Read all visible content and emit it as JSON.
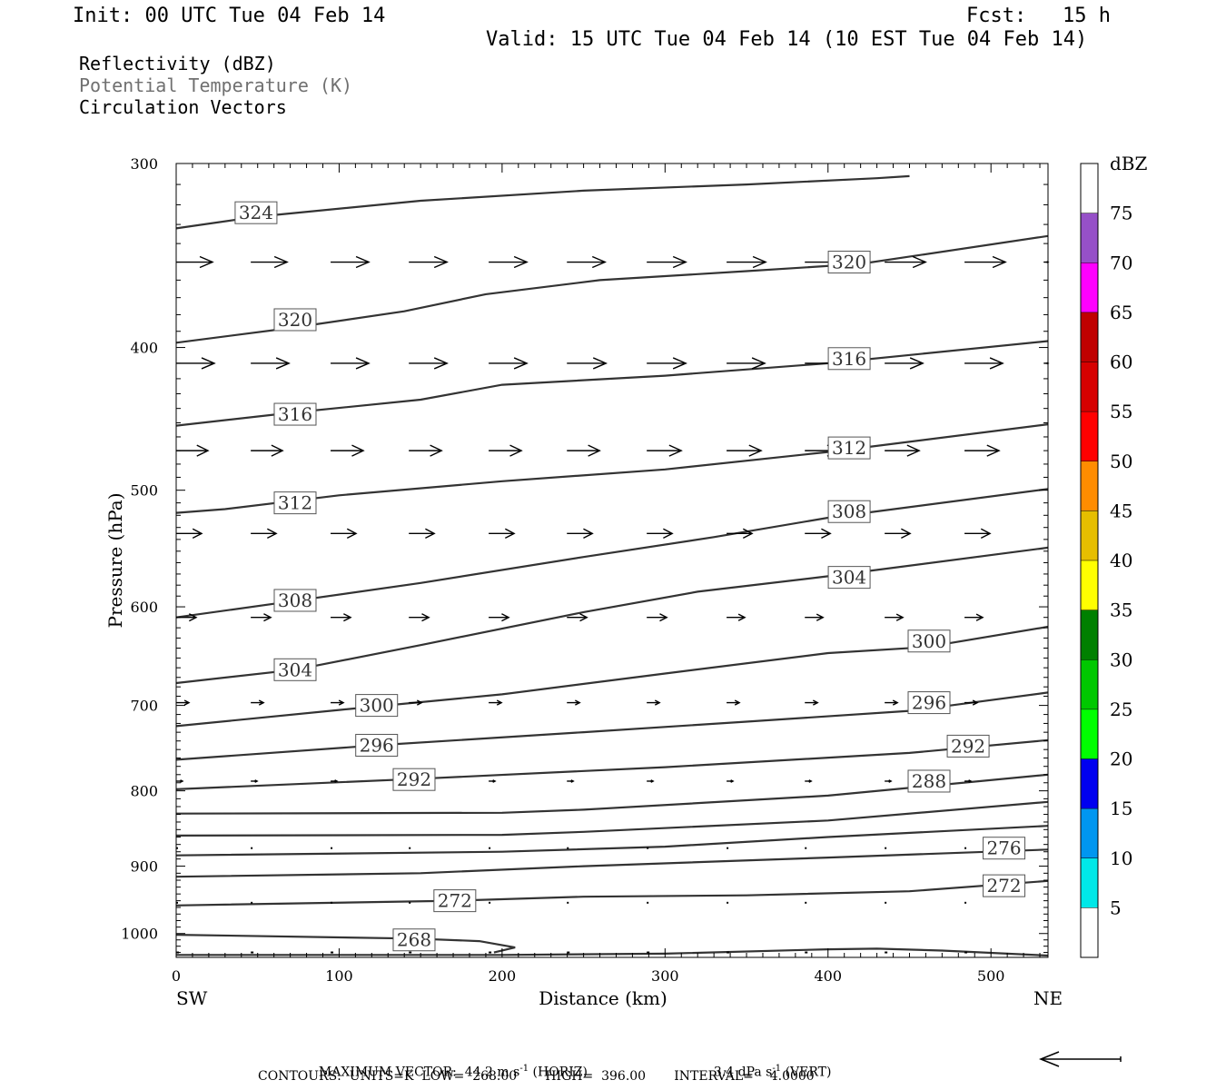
{
  "header": {
    "init": "Init: 00 UTC Tue 04 Feb 14",
    "fcst": "Fcst:   15 h",
    "valid": "Valid: 15 UTC Tue 04 Feb 14 (10 EST Tue 04 Feb 14)"
  },
  "legend": {
    "line1": "Reflectivity (dBZ)",
    "line2": "Potential Temperature (K)",
    "line3": "Circulation Vectors",
    "line2_color": "#707070"
  },
  "footer": {
    "max_vector_label": "MAXIMUM VECTOR:",
    "max_vector_h": "44.2 m s",
    "max_vector_h_exp": "-1",
    "max_vector_h_unit": "(HORIZ)",
    "max_vector_v": "3.4 dPa s",
    "max_vector_v_exp": "-1",
    "max_vector_v_unit": "(VERT)",
    "contours": "CONTOURS:  UNITS=K  LOW=  268.00       HIGH=  396.00       INTERVAL=    4.0000"
  },
  "chart_data": {
    "type": "line",
    "subtype": "vertical-cross-section",
    "xlabel": "Distance (km)",
    "ylabel": "Pressure (hPa)",
    "xlim": [
      0,
      535
    ],
    "ylim": [
      1038,
      300
    ],
    "y_scale": "log-pressure",
    "x_ticks": [
      0,
      100,
      200,
      300,
      400,
      500
    ],
    "y_ticks": [
      300,
      400,
      500,
      600,
      700,
      800,
      900,
      1000
    ],
    "x_end_labels": {
      "left": "SW",
      "right": "NE"
    },
    "grid": false,
    "contour_color": "#333333",
    "vector_color": "#000000",
    "contours": [
      {
        "value": 324,
        "label": "324",
        "label_at": [
          49,
          324
        ],
        "points": [
          [
            0,
            332
          ],
          [
            50,
            326
          ],
          [
            150,
            318
          ],
          [
            250,
            313
          ],
          [
            350,
            310
          ],
          [
            430,
            307
          ],
          [
            450,
            306
          ]
        ]
      },
      {
        "value": 320,
        "label": "320",
        "label_at": [
          73,
          383
        ],
        "points": [
          [
            0,
            397
          ],
          [
            70,
            388
          ],
          [
            140,
            378
          ],
          [
            190,
            368
          ],
          [
            260,
            360
          ],
          [
            350,
            355
          ],
          [
            420,
            351
          ],
          [
            535,
            336
          ]
        ],
        "label2": "320",
        "label2_at": [
          413,
          350
        ]
      },
      {
        "value": 316,
        "label": "316",
        "label_at": [
          73,
          444
        ],
        "points": [
          [
            0,
            452
          ],
          [
            70,
            443
          ],
          [
            150,
            434
          ],
          [
            200,
            424
          ],
          [
            300,
            418
          ],
          [
            400,
            410
          ],
          [
            535,
            396
          ]
        ],
        "label2": "316",
        "label2_at": [
          413,
          407
        ]
      },
      {
        "value": 312,
        "label": "312",
        "label_at": [
          73,
          510
        ],
        "points": [
          [
            0,
            518
          ],
          [
            30,
            515
          ],
          [
            100,
            504
          ],
          [
            200,
            493
          ],
          [
            300,
            484
          ],
          [
            400,
            471
          ],
          [
            535,
            451
          ]
        ],
        "label2": "312",
        "label2_at": [
          413,
          468
        ]
      },
      {
        "value": 308,
        "label": "308",
        "label_at": [
          73,
          594
        ],
        "points": [
          [
            0,
            610
          ],
          [
            70,
            595
          ],
          [
            150,
            578
          ],
          [
            250,
            555
          ],
          [
            330,
            538
          ],
          [
            400,
            522
          ],
          [
            535,
            499
          ]
        ],
        "label2": "308",
        "label2_at": [
          413,
          517
        ]
      },
      {
        "value": 304,
        "label": "304",
        "label_at": [
          73,
          662
        ],
        "points": [
          [
            0,
            676
          ],
          [
            73,
            662
          ],
          [
            150,
            637
          ],
          [
            250,
            605
          ],
          [
            320,
            586
          ],
          [
            400,
            572
          ],
          [
            535,
            547
          ]
        ],
        "label2": "304",
        "label2_at": [
          413,
          573
        ]
      },
      {
        "value": 300,
        "label": "300",
        "label_at": [
          123,
          700
        ],
        "points": [
          [
            0,
            723
          ],
          [
            100,
            705
          ],
          [
            200,
            688
          ],
          [
            300,
            666
          ],
          [
            400,
            645
          ],
          [
            460,
            639
          ],
          [
            535,
            619
          ]
        ],
        "label2": "300",
        "label2_at": [
          462,
          633
        ]
      },
      {
        "value": 296,
        "label": "296",
        "label_at": [
          123,
          745
        ],
        "points": [
          [
            0,
            762
          ],
          [
            123,
            745
          ],
          [
            250,
            730
          ],
          [
            350,
            718
          ],
          [
            450,
            706
          ],
          [
            535,
            686
          ]
        ],
        "label2": "296",
        "label2_at": [
          462,
          697
        ]
      },
      {
        "value": 292,
        "label": "292",
        "label_at": [
          146,
          786
        ],
        "points": [
          [
            0,
            798
          ],
          [
            150,
            785
          ],
          [
            300,
            771
          ],
          [
            450,
            754
          ],
          [
            535,
            739
          ]
        ],
        "label2": "292",
        "label2_at": [
          486,
          746
        ]
      },
      {
        "value": 288,
        "label": "288",
        "label_at": [
          462,
          788
        ],
        "points": [
          [
            0,
            829
          ],
          [
            200,
            828
          ],
          [
            250,
            824
          ],
          [
            400,
            806
          ],
          [
            535,
            780
          ]
        ]
      },
      {
        "value": 284,
        "label": "",
        "points": [
          [
            0,
            858
          ],
          [
            200,
            857
          ],
          [
            250,
            853
          ],
          [
            400,
            838
          ],
          [
            535,
            814
          ]
        ]
      },
      {
        "value": 280,
        "label": "",
        "points": [
          [
            0,
            885
          ],
          [
            200,
            880
          ],
          [
            300,
            873
          ],
          [
            400,
            860
          ],
          [
            535,
            845
          ]
        ]
      },
      {
        "value": 276,
        "label": "276",
        "label_at": [
          508,
          875
        ],
        "points": [
          [
            0,
            915
          ],
          [
            150,
            910
          ],
          [
            250,
            900
          ],
          [
            400,
            888
          ],
          [
            535,
            877
          ]
        ]
      },
      {
        "value": 272,
        "label": "272",
        "label_at": [
          171,
          950
        ],
        "points": [
          [
            0,
            957
          ],
          [
            171,
            950
          ],
          [
            250,
            944
          ],
          [
            350,
            942
          ],
          [
            450,
            936
          ],
          [
            535,
            921
          ]
        ],
        "label2": "272",
        "label2_at": [
          508,
          928
        ]
      },
      {
        "value": 268,
        "label": "268",
        "label_at": [
          146,
          1010
        ],
        "points": [
          [
            0,
            1002
          ],
          [
            146,
            1008
          ],
          [
            186,
            1012
          ],
          [
            208,
            1022
          ],
          [
            195,
            1030
          ]
        ]
      },
      {
        "value": 268,
        "label": "",
        "points": [
          [
            0,
            1034
          ],
          [
            200,
            1034
          ],
          [
            300,
            1032
          ],
          [
            400,
            1025
          ],
          [
            430,
            1024
          ],
          [
            470,
            1027
          ],
          [
            535,
            1035
          ]
        ]
      }
    ],
    "vectors": [
      {
        "p": 350,
        "x": [
          0,
          48,
          97,
          145,
          194,
          242,
          291,
          340,
          388,
          437,
          486,
          535
        ],
        "dx": [
          40,
          40,
          42,
          42,
          42,
          42,
          43,
          43,
          45,
          45,
          45,
          45
        ]
      },
      {
        "p": 410,
        "x": [
          0,
          48,
          97,
          145,
          194,
          242,
          291,
          340,
          388,
          437,
          486,
          535
        ],
        "dx": [
          42,
          42,
          42,
          42,
          42,
          43,
          43,
          42,
          42,
          42,
          42,
          42
        ]
      },
      {
        "p": 470,
        "x": [
          0,
          48,
          97,
          145,
          194,
          242,
          291,
          340,
          388,
          437,
          486
        ],
        "dx": [
          35,
          35,
          36,
          36,
          36,
          36,
          38,
          38,
          38,
          38,
          38
        ]
      },
      {
        "p": 535,
        "x": [
          0,
          48,
          97,
          145,
          194,
          242,
          291,
          340,
          388,
          437,
          486
        ],
        "dx": [
          28,
          28,
          28,
          28,
          28,
          28,
          28,
          28,
          28,
          28,
          28
        ]
      },
      {
        "p": 610,
        "x": [
          0,
          48,
          97,
          145,
          194,
          242,
          291,
          340,
          388,
          437,
          486
        ],
        "dx": [
          22,
          22,
          22,
          22,
          22,
          22,
          22,
          20,
          20,
          20,
          20
        ]
      },
      {
        "p": 697,
        "x": [
          0,
          48,
          97,
          145,
          194,
          242,
          291,
          340,
          388,
          437,
          486
        ],
        "dx": [
          14,
          14,
          14,
          14,
          14,
          14,
          14,
          14,
          14,
          14,
          14
        ]
      },
      {
        "p": 788,
        "x": [
          0,
          48,
          97,
          145,
          194,
          242,
          291,
          340,
          388,
          437,
          486
        ],
        "dx": [
          7,
          7,
          7,
          7,
          7,
          7,
          7,
          7,
          7,
          7,
          7
        ]
      },
      {
        "p": 875,
        "x": [
          0,
          48,
          97,
          145,
          194,
          242,
          291,
          340,
          388,
          437,
          486
        ],
        "dx": [
          2,
          2,
          2,
          2,
          2,
          2,
          2,
          2,
          2,
          2,
          2
        ]
      },
      {
        "p": 953,
        "x": [
          0,
          48,
          97,
          145,
          194,
          242,
          291,
          340,
          388,
          437,
          486
        ],
        "dx": [
          2,
          2,
          2,
          2,
          2,
          2,
          2,
          2,
          2,
          2,
          2
        ]
      },
      {
        "p": 1030,
        "x": [
          0,
          48,
          97,
          145,
          194,
          242,
          291,
          340,
          388,
          437,
          486
        ],
        "dx": [
          3,
          3,
          3,
          3,
          3,
          3,
          3,
          3,
          3,
          3,
          3
        ]
      }
    ],
    "colorbar": {
      "unit_label": "dBZ",
      "levels": [
        "5",
        "10",
        "15",
        "20",
        "25",
        "30",
        "35",
        "40",
        "45",
        "50",
        "55",
        "60",
        "65",
        "70",
        "75"
      ],
      "colors": [
        "#00e8e8",
        "#0096f0",
        "#0000f0",
        "#00ff00",
        "#00c800",
        "#008000",
        "#ffff00",
        "#e6be00",
        "#ff8c00",
        "#ff0000",
        "#d60000",
        "#c00000",
        "#ff00ff",
        "#9650c8",
        "#ffffff"
      ]
    }
  }
}
